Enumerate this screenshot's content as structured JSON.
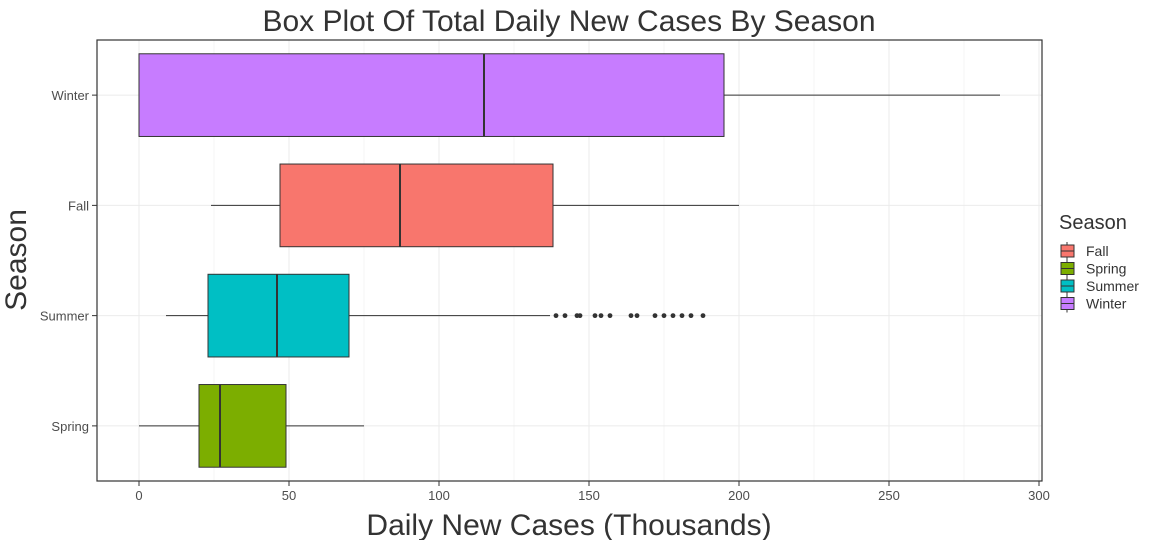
{
  "chart_data": {
    "type": "boxplot",
    "orientation": "horizontal",
    "title": "Box Plot Of Total Daily New Cases By Season",
    "xlabel": "Daily New Cases (Thousands)",
    "ylabel": "Season",
    "xlim": [
      -14,
      301
    ],
    "x_ticks": [
      0,
      50,
      100,
      150,
      200,
      250,
      300
    ],
    "categories": [
      "Winter",
      "Fall",
      "Summer",
      "Spring"
    ],
    "grid": true,
    "legend": {
      "title": "Season",
      "position": "right",
      "entries": [
        "Fall",
        "Spring",
        "Summer",
        "Winter"
      ]
    },
    "series": [
      {
        "category": "Winter",
        "whisker_low": 0,
        "q1": 0,
        "median": 115,
        "q3": 195,
        "whisker_high": 287,
        "outliers": [],
        "color": "#C77CFF"
      },
      {
        "category": "Fall",
        "whisker_low": 24,
        "q1": 47,
        "median": 87,
        "q3": 138,
        "whisker_high": 200,
        "outliers": [],
        "color": "#F8766D"
      },
      {
        "category": "Summer",
        "whisker_low": 9,
        "q1": 23,
        "median": 46,
        "q3": 70,
        "whisker_high": 137,
        "outliers": [
          139,
          142,
          146,
          147,
          152,
          154,
          157,
          164,
          166,
          172,
          175,
          178,
          181,
          184,
          188
        ],
        "color": "#00BFC4"
      },
      {
        "category": "Spring",
        "whisker_low": 0,
        "q1": 20,
        "median": 27,
        "q3": 49,
        "whisker_high": 75,
        "outliers": [],
        "color": "#7CAE00"
      }
    ]
  }
}
